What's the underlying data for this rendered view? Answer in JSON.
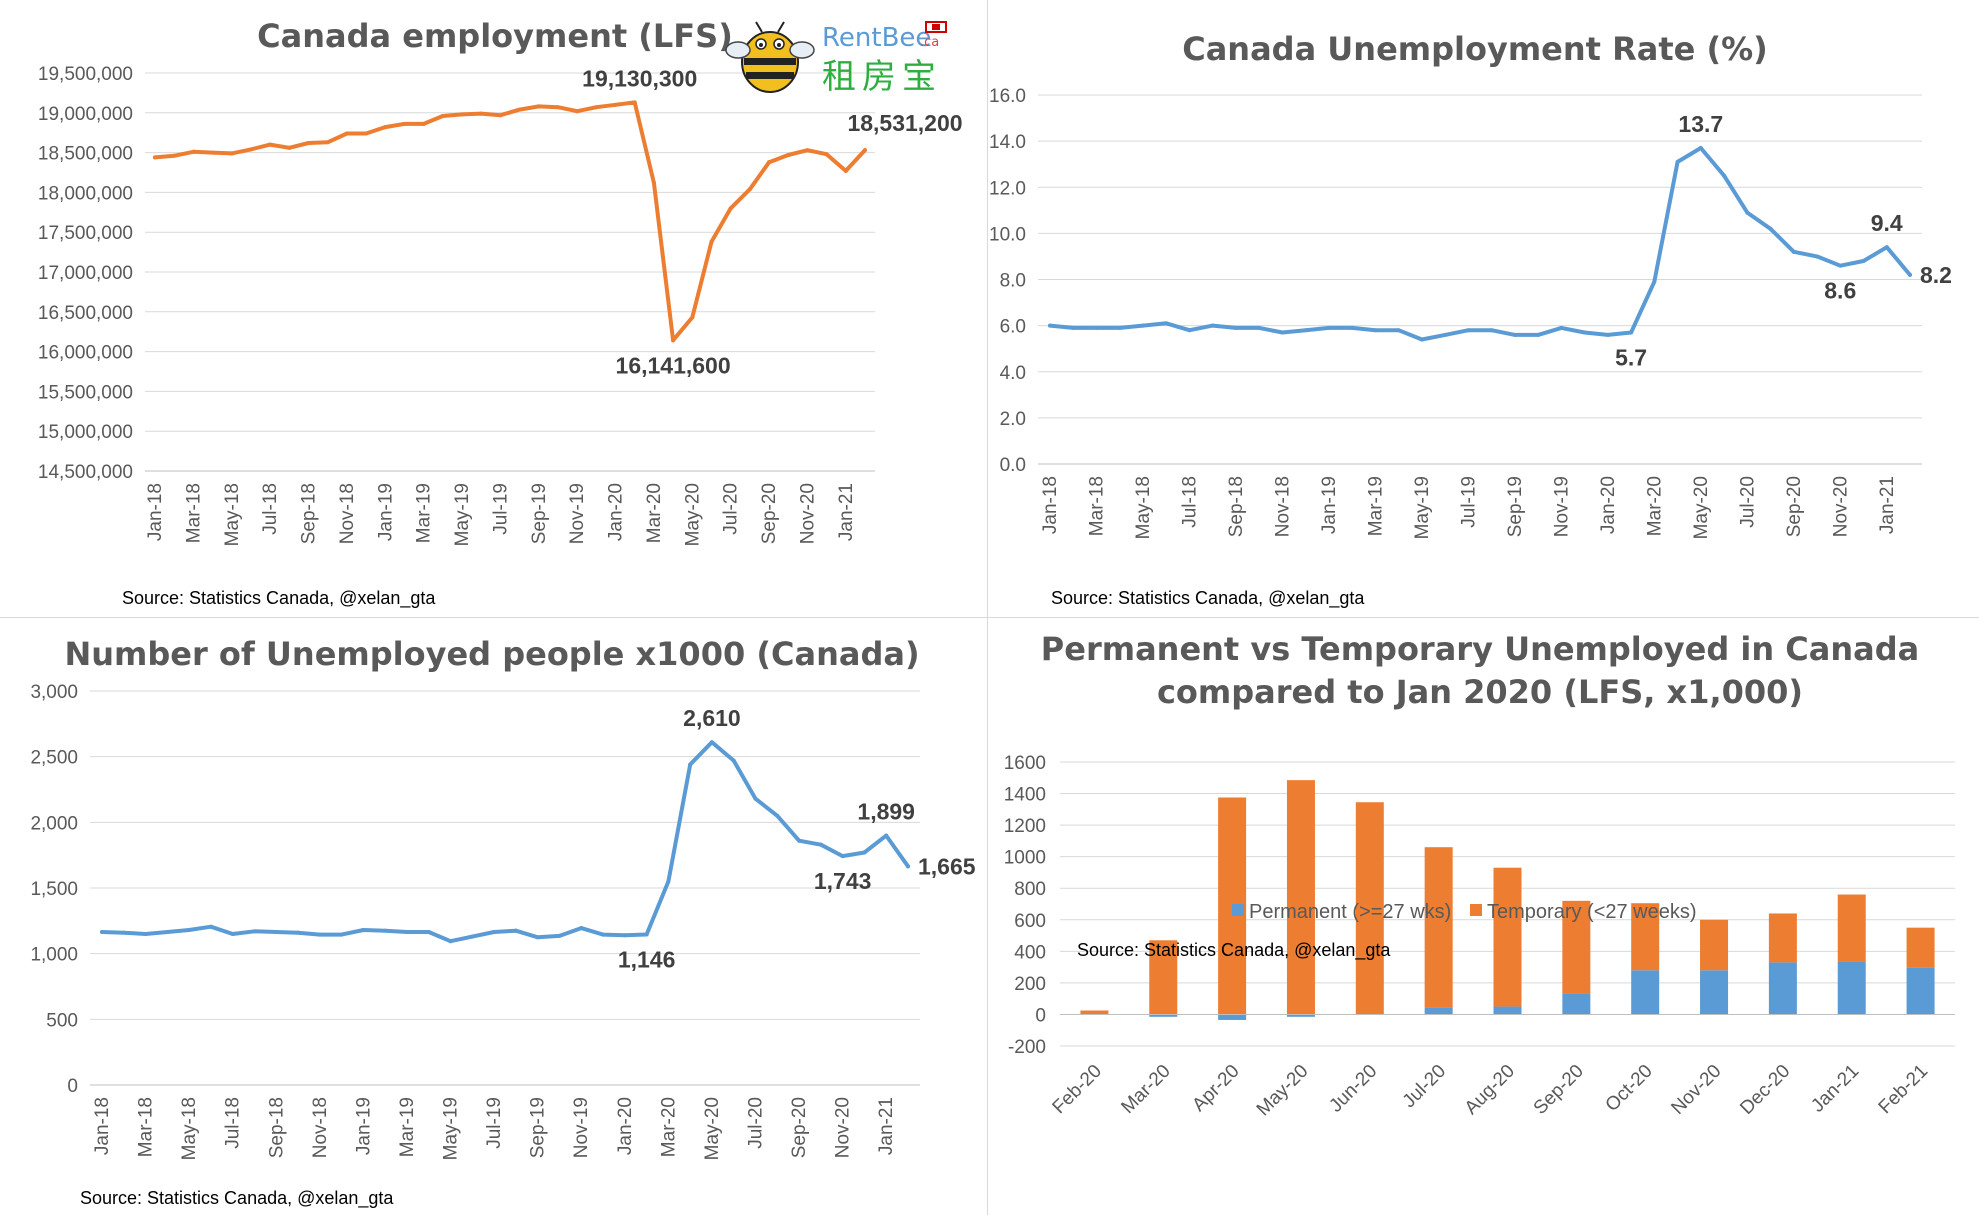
{
  "logo": {
    "brand_text": "RentBee",
    "domain_text": ".ca",
    "chinese_text": "租房宝"
  },
  "chart_data": [
    {
      "type": "line",
      "title": "Canada employment (LFS)",
      "source": "Source: Statistics Canada, @xelan_gta",
      "color": "#ED7D31",
      "ylim": [
        14500000,
        19500000
      ],
      "yticks": [
        14500000,
        15000000,
        15500000,
        16000000,
        16500000,
        17000000,
        17500000,
        18000000,
        18500000,
        19000000,
        19500000
      ],
      "ytick_labels": [
        "14,500,000",
        "15,000,000",
        "15,500,000",
        "16,000,000",
        "16,500,000",
        "17,000,000",
        "17,500,000",
        "18,000,000",
        "18,500,000",
        "19,000,000",
        "19,500,000"
      ],
      "x": [
        "Jan-18",
        "Feb-18",
        "Mar-18",
        "Apr-18",
        "May-18",
        "Jun-18",
        "Jul-18",
        "Aug-18",
        "Sep-18",
        "Oct-18",
        "Nov-18",
        "Dec-18",
        "Jan-19",
        "Feb-19",
        "Mar-19",
        "Apr-19",
        "May-19",
        "Jun-19",
        "Jul-19",
        "Aug-19",
        "Sep-19",
        "Oct-19",
        "Nov-19",
        "Dec-19",
        "Jan-20",
        "Feb-20",
        "Mar-20",
        "Apr-20",
        "May-20",
        "Jun-20",
        "Jul-20",
        "Aug-20",
        "Sep-20",
        "Oct-20",
        "Nov-20",
        "Dec-20",
        "Jan-21",
        "Feb-21"
      ],
      "xtick_labels": [
        "Jan-18",
        "",
        "Mar-18",
        "",
        "May-18",
        "",
        "Jul-18",
        "",
        "Sep-18",
        "",
        "Nov-18",
        "",
        "Jan-19",
        "",
        "Mar-19",
        "",
        "May-19",
        "",
        "Jul-19",
        "",
        "Sep-19",
        "",
        "Nov-19",
        "",
        "Jan-20",
        "",
        "Mar-20",
        "",
        "May-20",
        "",
        "Jul-20",
        "",
        "Sep-20",
        "",
        "Nov-20",
        "",
        "Jan-21",
        ""
      ],
      "values": [
        18440000,
        18460000,
        18510000,
        18500000,
        18490000,
        18540000,
        18600000,
        18560000,
        18620000,
        18630000,
        18740000,
        18740000,
        18820000,
        18860000,
        18860000,
        18960000,
        18980000,
        18990000,
        18970000,
        19040000,
        19080000,
        19070000,
        19020000,
        19070000,
        19100000,
        19130300,
        18120000,
        16141600,
        16430000,
        17380000,
        17800000,
        18040000,
        18380000,
        18470000,
        18530000,
        18480000,
        18270000,
        18531200
      ],
      "annotations": [
        {
          "index": 25,
          "label": "19,130,300",
          "pos": "above"
        },
        {
          "index": 27,
          "label": "16,141,600",
          "pos": "below"
        },
        {
          "index": 37,
          "label": "18,531,200",
          "pos": "above"
        }
      ],
      "grid": true
    },
    {
      "type": "line",
      "title": "Canada Unemployment Rate (%)",
      "source": "Source: Statistics Canada, @xelan_gta",
      "color": "#5B9BD5",
      "ylim": [
        0,
        16
      ],
      "yticks": [
        0,
        2,
        4,
        6,
        8,
        10,
        12,
        14,
        16
      ],
      "ytick_labels": [
        "0.0",
        "2.0",
        "4.0",
        "6.0",
        "8.0",
        "10.0",
        "12.0",
        "14.0",
        "16.0"
      ],
      "x": [
        "Jan-18",
        "Feb-18",
        "Mar-18",
        "Apr-18",
        "May-18",
        "Jun-18",
        "Jul-18",
        "Aug-18",
        "Sep-18",
        "Oct-18",
        "Nov-18",
        "Dec-18",
        "Jan-19",
        "Feb-19",
        "Mar-19",
        "Apr-19",
        "May-19",
        "Jun-19",
        "Jul-19",
        "Aug-19",
        "Sep-19",
        "Oct-19",
        "Nov-19",
        "Dec-19",
        "Jan-20",
        "Feb-20",
        "Mar-20",
        "Apr-20",
        "May-20",
        "Jun-20",
        "Jul-20",
        "Aug-20",
        "Sep-20",
        "Oct-20",
        "Nov-20",
        "Dec-20",
        "Jan-21",
        "Feb-21"
      ],
      "xtick_labels": [
        "Jan-18",
        "",
        "Mar-18",
        "",
        "May-18",
        "",
        "Jul-18",
        "",
        "Sep-18",
        "",
        "Nov-18",
        "",
        "Jan-19",
        "",
        "Mar-19",
        "",
        "May-19",
        "",
        "Jul-19",
        "",
        "Sep-19",
        "",
        "Nov-19",
        "",
        "Jan-20",
        "",
        "Mar-20",
        "",
        "May-20",
        "",
        "Jul-20",
        "",
        "Sep-20",
        "",
        "Nov-20",
        "",
        "Jan-21",
        ""
      ],
      "values": [
        6.0,
        5.9,
        5.9,
        5.9,
        6.0,
        6.1,
        5.8,
        6.0,
        5.9,
        5.9,
        5.7,
        5.8,
        5.9,
        5.9,
        5.8,
        5.8,
        5.4,
        5.6,
        5.8,
        5.8,
        5.6,
        5.6,
        5.9,
        5.7,
        5.6,
        5.7,
        7.9,
        13.1,
        13.7,
        12.5,
        10.9,
        10.2,
        9.2,
        9.0,
        8.6,
        8.8,
        9.4,
        8.2
      ],
      "annotations": [
        {
          "index": 25,
          "label": "5.7",
          "pos": "below"
        },
        {
          "index": 28,
          "label": "13.7",
          "pos": "above"
        },
        {
          "index": 34,
          "label": "8.6",
          "pos": "below"
        },
        {
          "index": 36,
          "label": "9.4",
          "pos": "above"
        },
        {
          "index": 37,
          "label": "8.2",
          "pos": "right"
        }
      ],
      "grid": true
    },
    {
      "type": "line",
      "title": "Number of Unemployed people x1000 (Canada)",
      "source": "Source: Statistics Canada, @xelan_gta",
      "color": "#5B9BD5",
      "ylim": [
        0,
        3000
      ],
      "yticks": [
        0,
        500,
        1000,
        1500,
        2000,
        2500,
        3000
      ],
      "ytick_labels": [
        "0",
        "500",
        "1,000",
        "1,500",
        "2,000",
        "2,500",
        "3,000"
      ],
      "x": [
        "Jan-18",
        "Feb-18",
        "Mar-18",
        "Apr-18",
        "May-18",
        "Jun-18",
        "Jul-18",
        "Aug-18",
        "Sep-18",
        "Oct-18",
        "Nov-18",
        "Dec-18",
        "Jan-19",
        "Feb-19",
        "Mar-19",
        "Apr-19",
        "May-19",
        "Jun-19",
        "Jul-19",
        "Aug-19",
        "Sep-19",
        "Oct-19",
        "Nov-19",
        "Dec-19",
        "Jan-20",
        "Feb-20",
        "Mar-20",
        "Apr-20",
        "May-20",
        "Jun-20",
        "Jul-20",
        "Aug-20",
        "Sep-20",
        "Oct-20",
        "Nov-20",
        "Dec-20",
        "Jan-21",
        "Feb-21"
      ],
      "xtick_labels": [
        "Jan-18",
        "",
        "Mar-18",
        "",
        "May-18",
        "",
        "Jul-18",
        "",
        "Sep-18",
        "",
        "Nov-18",
        "",
        "Jan-19",
        "",
        "Mar-19",
        "",
        "May-19",
        "",
        "Jul-19",
        "",
        "Sep-19",
        "",
        "Nov-19",
        "",
        "Jan-20",
        "",
        "Mar-20",
        "",
        "May-20",
        "",
        "Jul-20",
        "",
        "Sep-20",
        "",
        "Nov-20",
        "",
        "Jan-21",
        ""
      ],
      "values": [
        1165,
        1160,
        1150,
        1165,
        1180,
        1205,
        1150,
        1170,
        1165,
        1160,
        1145,
        1145,
        1180,
        1175,
        1165,
        1165,
        1095,
        1130,
        1165,
        1175,
        1125,
        1135,
        1195,
        1145,
        1140,
        1146,
        1550,
        2440,
        2610,
        2470,
        2180,
        2050,
        1860,
        1830,
        1743,
        1770,
        1899,
        1665
      ],
      "annotations": [
        {
          "index": 25,
          "label": "1,146",
          "pos": "below"
        },
        {
          "index": 28,
          "label": "2,610",
          "pos": "above"
        },
        {
          "index": 34,
          "label": "1,743",
          "pos": "below"
        },
        {
          "index": 36,
          "label": "1,899",
          "pos": "above"
        },
        {
          "index": 37,
          "label": "1,665",
          "pos": "right"
        }
      ],
      "grid": true
    },
    {
      "type": "bar",
      "stacked": true,
      "title": "Permanent vs Temporary Unemployed in Canada compared to Jan 2020 (LFS, x1,000)",
      "title_lines": [
        "Permanent vs Temporary Unemployed in Canada",
        "compared to Jan 2020 (LFS, x1,000)"
      ],
      "source": "Source: Statistics Canada, @xelan_gta",
      "ylim": [
        -200,
        1600
      ],
      "yticks": [
        -200,
        0,
        200,
        400,
        600,
        800,
        1000,
        1200,
        1400,
        1600
      ],
      "ytick_labels": [
        "-200",
        "0",
        "200",
        "400",
        "600",
        "800",
        "1000",
        "1200",
        "1400",
        "1600"
      ],
      "categories": [
        "Feb-20",
        "Mar-20",
        "Apr-20",
        "May-20",
        "Jun-20",
        "Jul-20",
        "Aug-20",
        "Sep-20",
        "Oct-20",
        "Nov-20",
        "Dec-20",
        "Jan-21",
        "Feb-21"
      ],
      "series": [
        {
          "name": "Permanent (>=27 wks)",
          "color": "#5B9BD5",
          "values": [
            0,
            -15,
            -35,
            -15,
            0,
            45,
            50,
            135,
            280,
            280,
            330,
            335,
            295
          ]
        },
        {
          "name": "Temporary (<27 weeks)",
          "color": "#ED7D31",
          "values": [
            25,
            470,
            1375,
            1485,
            1345,
            1015,
            880,
            585,
            425,
            320,
            310,
            425,
            255
          ]
        }
      ],
      "legend": "bottom",
      "grid": true
    }
  ]
}
